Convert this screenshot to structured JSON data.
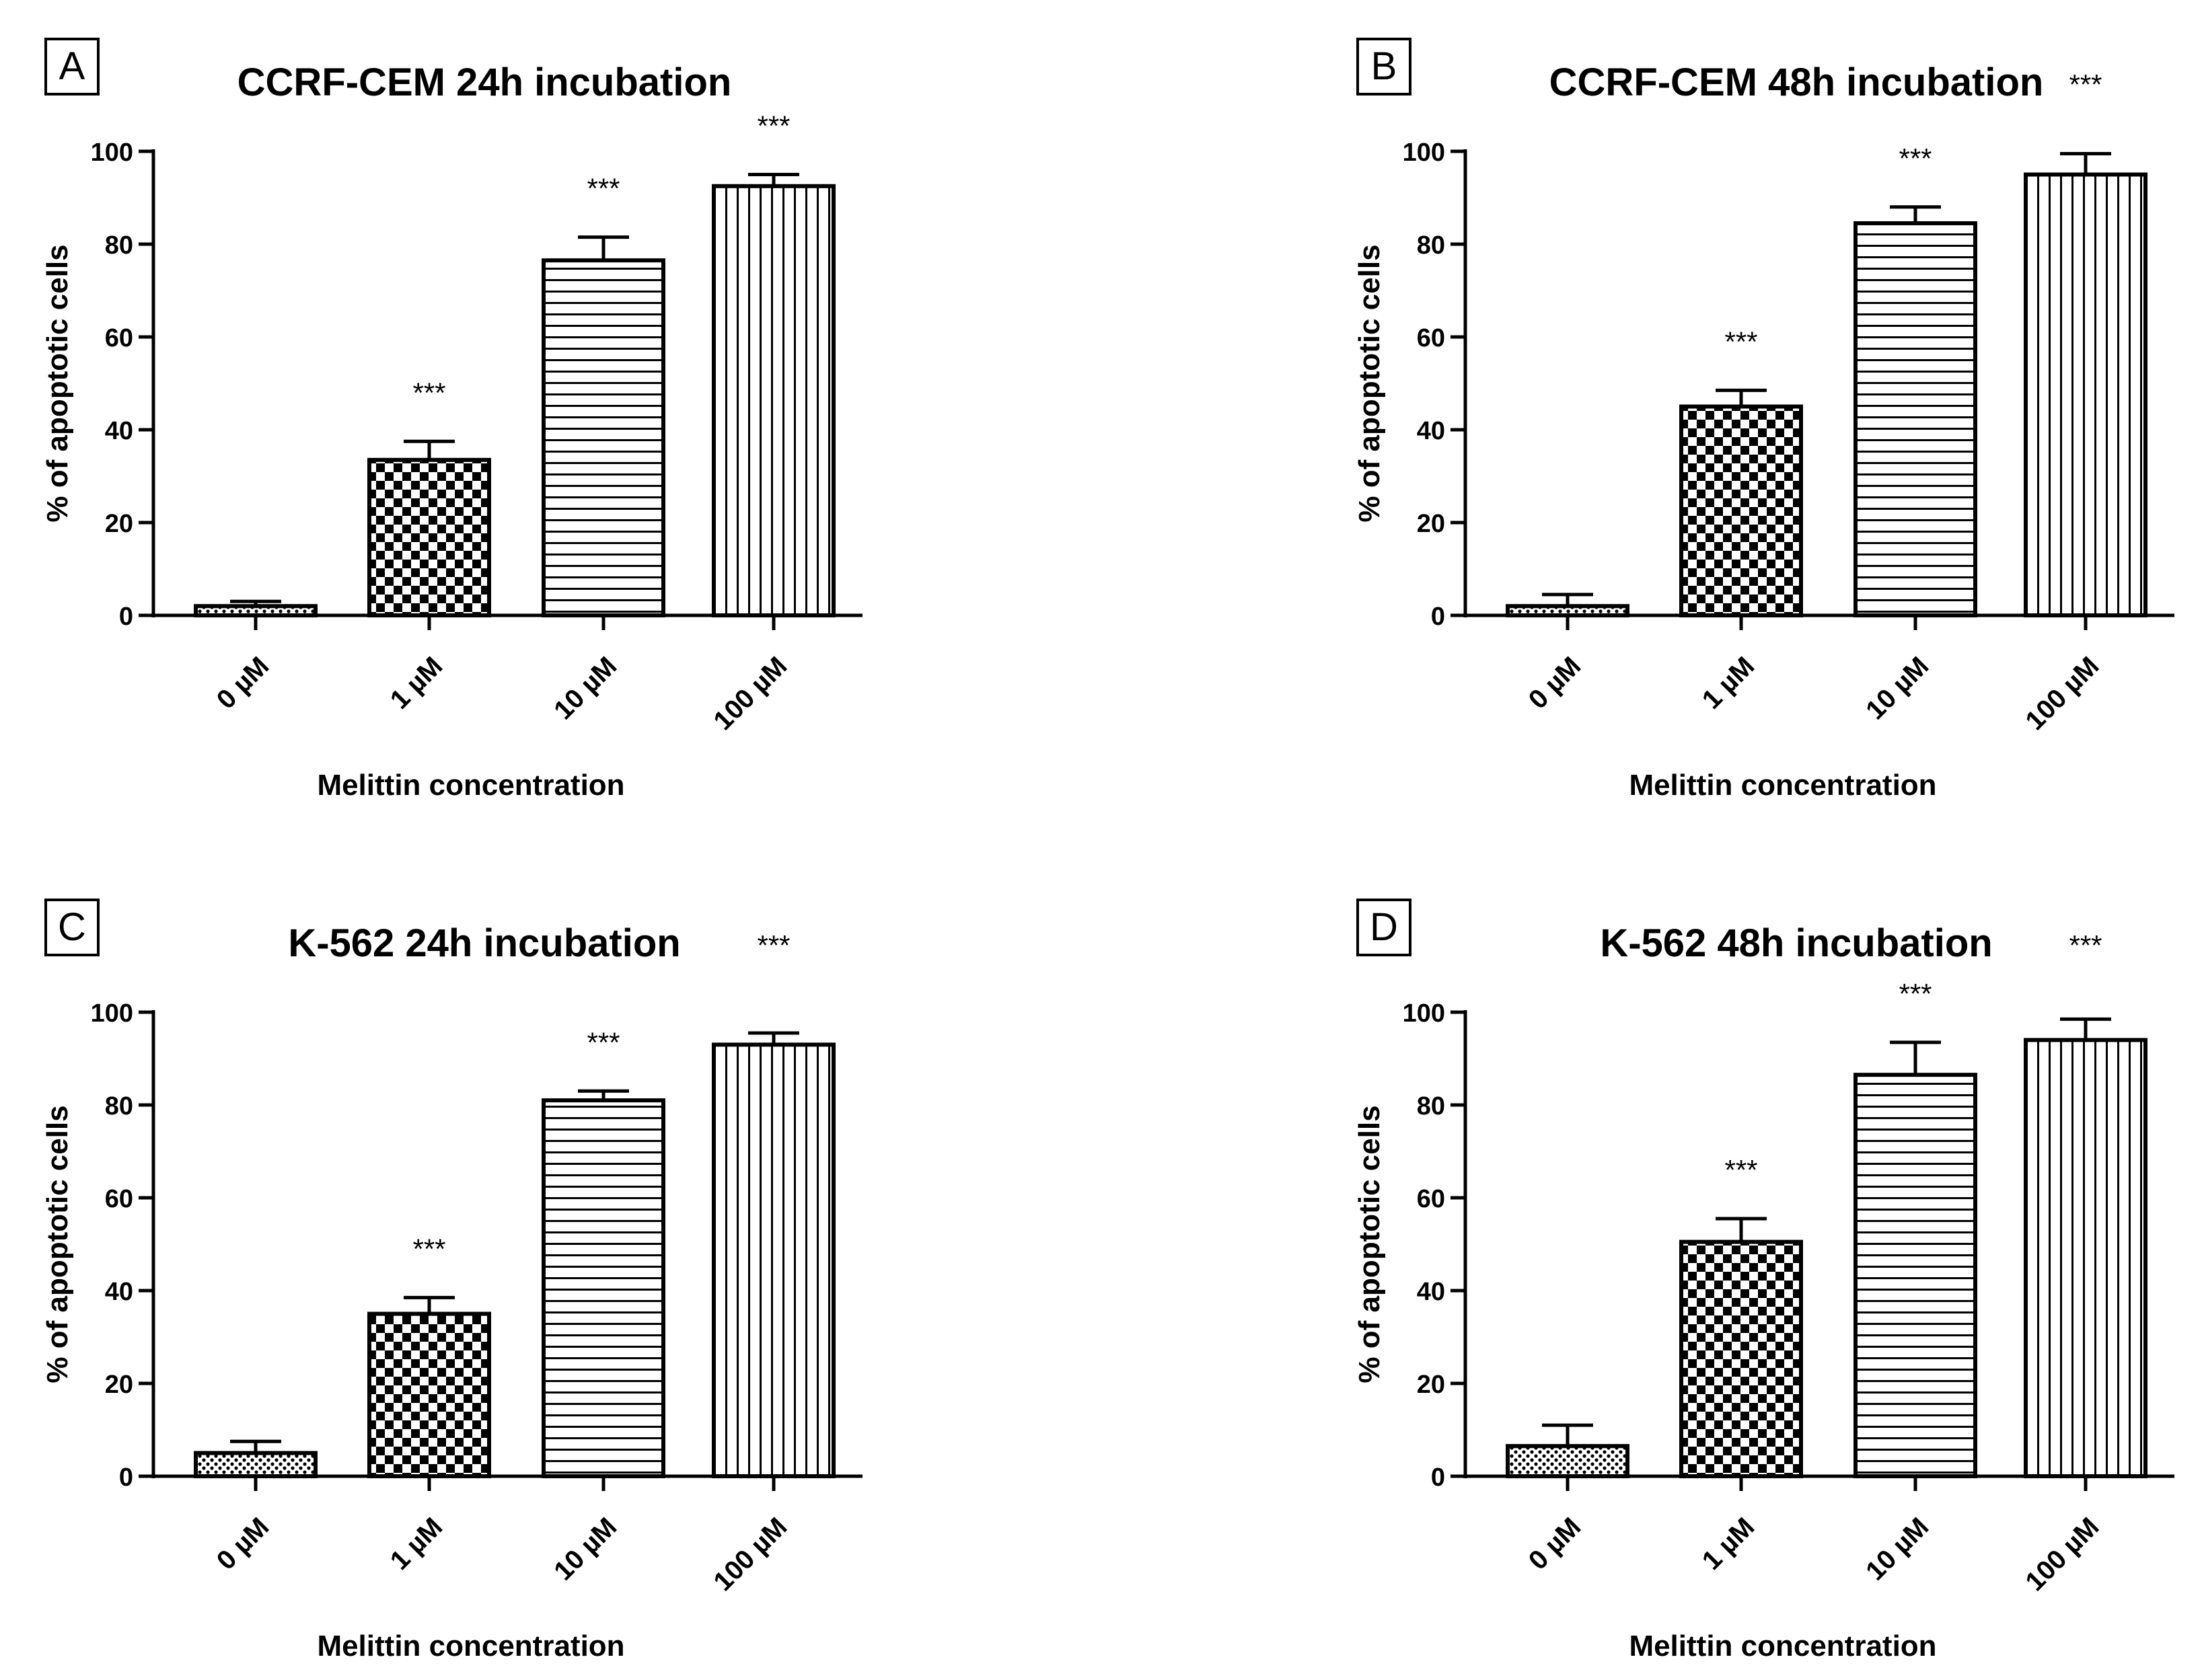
{
  "chart_data": [
    {
      "type": "bar",
      "panel": "A",
      "title": "CCRF-CEM 24h incubation",
      "title_annotation": "",
      "xlabel": "Melittin concentration",
      "ylabel": "% of apoptotic cells",
      "ylim": [
        0,
        100
      ],
      "yticks": [
        0,
        20,
        40,
        60,
        80,
        100
      ],
      "categories": [
        "0 µM",
        "1 µM",
        "10 µM",
        "100 µM"
      ],
      "values": [
        2,
        33.5,
        76.5,
        92.5
      ],
      "errors": [
        1,
        4,
        5,
        2.5
      ],
      "significance": [
        "",
        "***",
        "***",
        "***"
      ],
      "patterns": [
        "dots",
        "checker",
        "hlines",
        "vlines"
      ],
      "grid": false,
      "legend": "none"
    },
    {
      "type": "bar",
      "panel": "B",
      "title": "CCRF-CEM 48h incubation",
      "title_annotation": "***",
      "xlabel": "Melittin concentration",
      "ylabel": "% of apoptotic cells",
      "ylim": [
        0,
        100
      ],
      "yticks": [
        0,
        20,
        40,
        60,
        80,
        100
      ],
      "categories": [
        "0 µM",
        "1 µM",
        "10 µM",
        "100 µM"
      ],
      "values": [
        2,
        45,
        84.5,
        95
      ],
      "errors": [
        2.5,
        3.5,
        3.5,
        4.5
      ],
      "significance": [
        "",
        "***",
        "***",
        ""
      ],
      "patterns": [
        "dots",
        "checker",
        "hlines",
        "vlines"
      ],
      "grid": false,
      "legend": "none"
    },
    {
      "type": "bar",
      "panel": "C",
      "title": "K-562 24h incubation",
      "title_annotation": "***",
      "xlabel": "Melittin concentration",
      "ylabel": "% of apoptotic cells",
      "ylim": [
        0,
        100
      ],
      "yticks": [
        0,
        20,
        40,
        60,
        80,
        100
      ],
      "categories": [
        "0 µM",
        "1 µM",
        "10 µM",
        "100 µM"
      ],
      "values": [
        5,
        35,
        81,
        93
      ],
      "errors": [
        2.5,
        3.5,
        2,
        2.5
      ],
      "significance": [
        "",
        "***",
        "***",
        ""
      ],
      "patterns": [
        "dots",
        "checker",
        "hlines",
        "vlines"
      ],
      "grid": false,
      "legend": "none"
    },
    {
      "type": "bar",
      "panel": "D",
      "title": "K-562 48h incubation",
      "title_annotation": "***",
      "xlabel": "Melittin concentration",
      "ylabel": "% of apoptotic cells",
      "ylim": [
        0,
        100
      ],
      "yticks": [
        0,
        20,
        40,
        60,
        80,
        100
      ],
      "categories": [
        "0 µM",
        "1 µM",
        "10 µM",
        "100 µM"
      ],
      "values": [
        6.5,
        50.5,
        86.5,
        94
      ],
      "errors": [
        4.5,
        5,
        7,
        4.5
      ],
      "significance": [
        "",
        "***",
        "***",
        ""
      ],
      "patterns": [
        "dots",
        "checker",
        "hlines",
        "vlines"
      ],
      "grid": false,
      "legend": "none"
    }
  ]
}
